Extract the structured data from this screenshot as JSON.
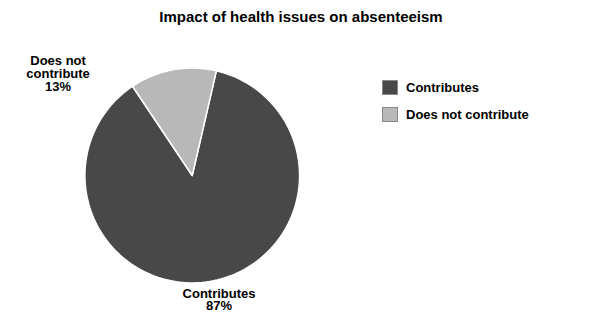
{
  "chart_data": {
    "type": "pie",
    "title": "Impact of health issues on absenteeism",
    "categories": [
      "Contributes",
      "Does not contribute"
    ],
    "values": [
      87,
      13
    ],
    "colors": [
      "#484848",
      "#b8b8b8"
    ],
    "data_labels": true,
    "value_labels": [
      "Contributes\n87%",
      "Does not\ncontribute\n13%"
    ],
    "legend": "right"
  }
}
